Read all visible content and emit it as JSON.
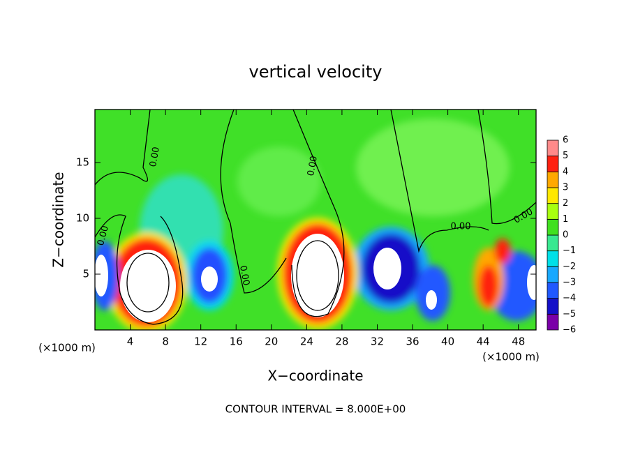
{
  "chart_data": {
    "type": "contour",
    "title": "vertical velocity",
    "x_label": "X−coordinate",
    "y_label": "Z−coordinate",
    "x_unit": "(×1000 m)",
    "x_unit_right": "(×1000 m)",
    "footer": "CONTOUR INTERVAL = 8.000E+00",
    "xlim": [
      0,
      50
    ],
    "xticks": [
      4,
      8,
      12,
      16,
      20,
      24,
      28,
      32,
      36,
      40,
      44,
      48
    ],
    "ylim": [
      0,
      19.75
    ],
    "yticks": [
      5,
      10,
      15
    ],
    "contour_labels": [
      "0.00",
      "0.00",
      "0.00",
      "0.00",
      "0.00",
      "0.00"
    ],
    "colorbar": {
      "ticks": [
        {
          "value": -6,
          "label": "−6"
        },
        {
          "value": -5,
          "label": "−5"
        },
        {
          "value": -4,
          "label": "−4"
        },
        {
          "value": -3,
          "label": "−3"
        },
        {
          "value": -2,
          "label": "−2"
        },
        {
          "value": -1,
          "label": "−1"
        },
        0,
        1,
        2,
        3,
        4,
        5,
        6
      ],
      "colors": [
        "#7a00a8",
        "#1410c8",
        "#2058ff",
        "#18a8ff",
        "#00e0e8",
        "#38e890",
        "#40e020",
        "#a8ff10",
        "#ffe800",
        "#ffa800",
        "#ff2010",
        "#ff8a8a"
      ]
    }
  }
}
